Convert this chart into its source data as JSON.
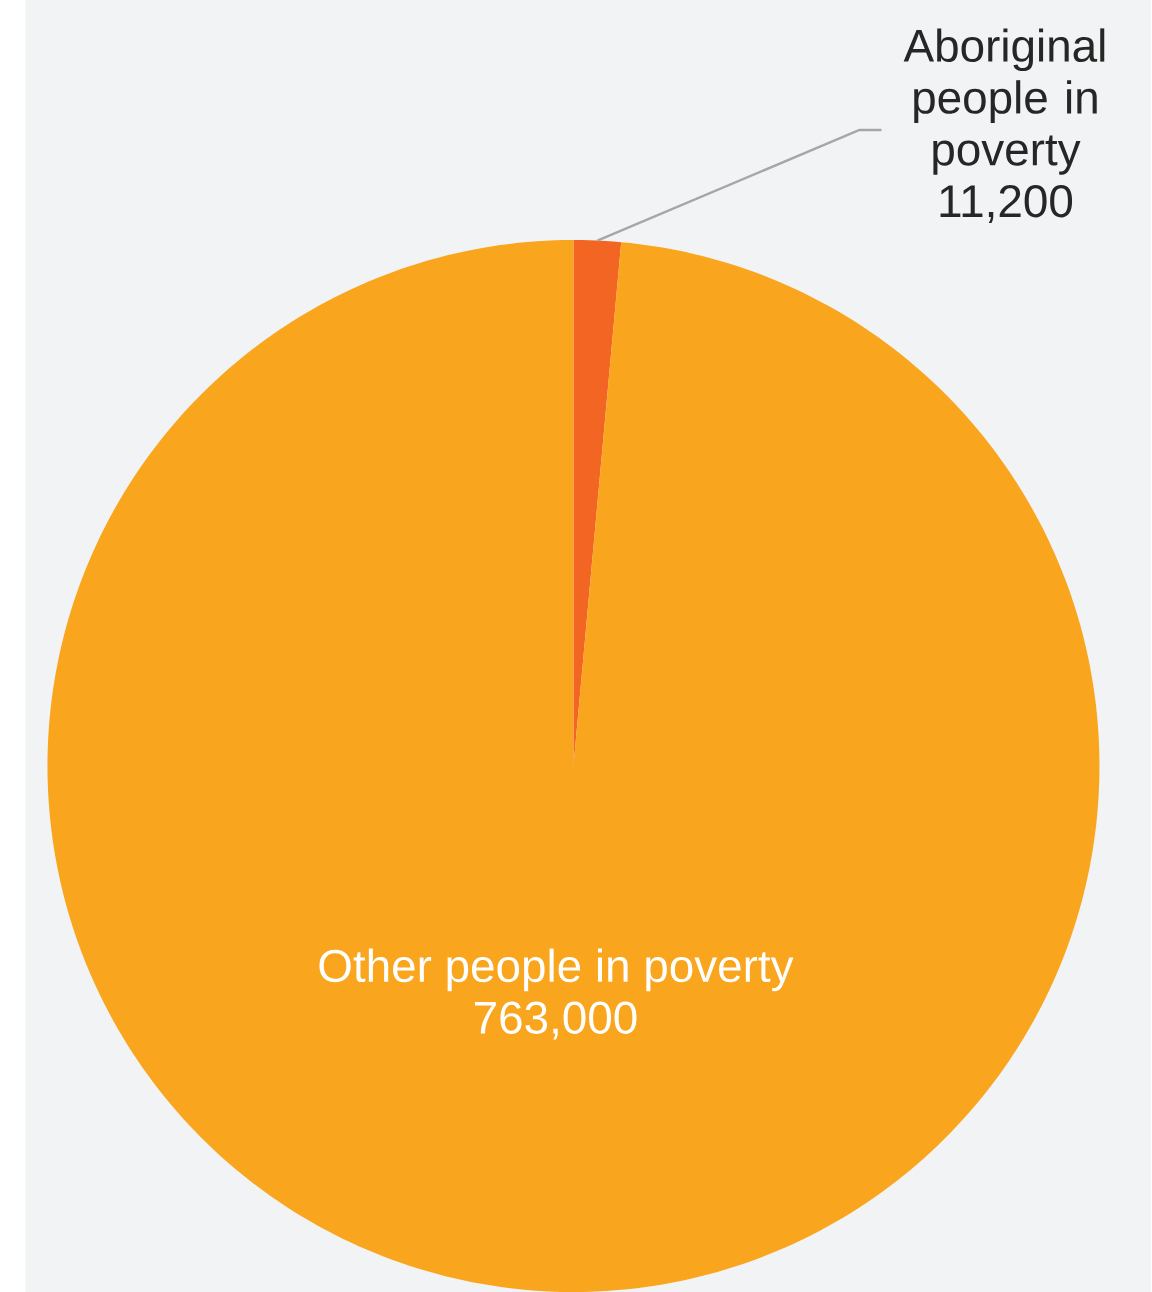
{
  "chart_data": {
    "type": "pie",
    "categories": [
      "Aboriginal people in poverty",
      "Other people in poverty"
    ],
    "values": [
      11200,
      763000
    ],
    "colors": [
      "#f26522",
      "#f9a51d"
    ],
    "value_labels": [
      "11,200",
      "763,000"
    ]
  }
}
